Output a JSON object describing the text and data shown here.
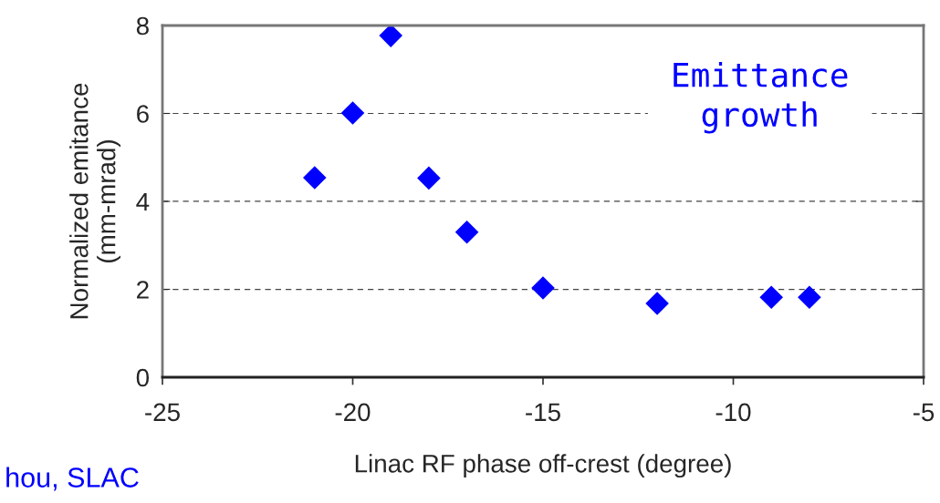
{
  "chart_data": {
    "type": "scatter",
    "xlabel": "Linac RF phase off-crest (degree)",
    "ylabel": "Normalized emitance\n(mm-mrad)",
    "x": [
      -21,
      -20,
      -19,
      -18,
      -17,
      -15,
      -12,
      -9,
      -8
    ],
    "series": [
      {
        "color": "#0000ff",
        "values": [
          4.54,
          6.01,
          7.77,
          4.53,
          3.3,
          2.03,
          1.68,
          1.82,
          1.82
        ]
      }
    ],
    "marker": "diamond",
    "xlim": [
      -25,
      -5
    ],
    "xticks": [
      -25,
      -20,
      -15,
      -10,
      -5
    ],
    "ylim": [
      0,
      8
    ],
    "yticks": [
      0,
      2,
      4,
      6,
      8
    ],
    "grid": "y",
    "annotations": [
      "Emittance\ngrowth",
      "hou, SLAC"
    ]
  }
}
